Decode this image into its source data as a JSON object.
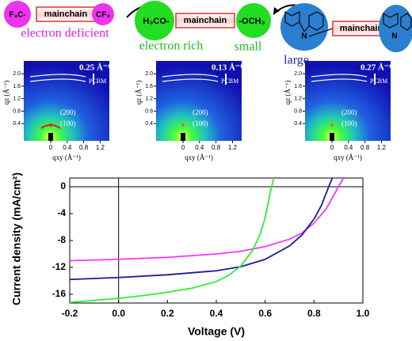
{
  "molecules": [
    {
      "left": "F₃C-",
      "core": "mainchain",
      "right": "CF₃",
      "label": "electron deficient"
    },
    {
      "left": "H₃CO-",
      "core": "mainchain",
      "right": "-OCH₃",
      "label": "electron rich",
      "size": "small"
    },
    {
      "left": "N",
      "core": "mainchain",
      "right": "N",
      "size": "large"
    }
  ],
  "giwaxs": {
    "ylabel": "qz (Å⁻¹)",
    "xlabel": "qxy (Å⁻¹)",
    "xticks": [
      0,
      0.4,
      0.8,
      1.2
    ],
    "yticks": [
      0.4,
      0.8,
      1.2,
      1.6,
      {
        "value": 2,
        "label": "2.0"
      }
    ],
    "panels": [
      {
        "spacing": "0.25 Å⁻¹",
        "ring": "PCBM",
        "peaks": [
          "(200)",
          "(100)"
        ]
      },
      {
        "spacing": "0.13 Å⁻¹",
        "ring": "PCBM",
        "peaks": [
          "(200)",
          "(100)"
        ]
      },
      {
        "spacing": "0.27 Å⁻¹",
        "ring": "PCBM",
        "peaks": [
          "(200)",
          "(100)"
        ]
      }
    ]
  },
  "chart_data": {
    "type": "line",
    "xlabel": "Voltage (V)",
    "ylabel": "Current density (mA/cm²)",
    "xlim": [
      -0.2,
      1.0
    ],
    "ylim": [
      -17.3,
      1.3
    ],
    "xticks": [
      -0.2,
      {
        "value": 0,
        "label": "0.0"
      },
      0.2,
      0.4,
      0.6,
      0.8,
      {
        "value": 1,
        "label": "1.0"
      }
    ],
    "yticks": [
      0,
      -4,
      -8,
      -12,
      -16
    ],
    "series": [
      {
        "color": "#ff33ff",
        "x": [
          -0.2,
          0,
          0.2,
          0.4,
          0.5,
          0.6,
          0.7,
          0.75,
          0.8,
          0.85,
          0.9,
          0.92
        ],
        "values": [
          -11.0,
          -10.8,
          -10.5,
          -10.0,
          -9.6,
          -8.9,
          -7.8,
          -6.9,
          -5.4,
          -3.3,
          0,
          1.3
        ]
      },
      {
        "color": "#1a1a9a",
        "x": [
          -0.2,
          0,
          0.2,
          0.4,
          0.5,
          0.6,
          0.7,
          0.75,
          0.8,
          0.83,
          0.86,
          0.875
        ],
        "values": [
          -13.8,
          -13.5,
          -13.1,
          -12.5,
          -11.9,
          -10.8,
          -8.8,
          -7.2,
          -4.8,
          -2.8,
          0,
          1.3
        ]
      },
      {
        "color": "#33ee33",
        "x": [
          -0.2,
          -0.1,
          0,
          0.1,
          0.2,
          0.3,
          0.4,
          0.45,
          0.5,
          0.55,
          0.58,
          0.6,
          0.62,
          0.635
        ],
        "values": [
          -17.2,
          -16.9,
          -16.6,
          -16.2,
          -15.7,
          -15.1,
          -14.1,
          -13.2,
          -11.8,
          -9.4,
          -7,
          -4.6,
          -1,
          1.3
        ]
      }
    ]
  }
}
